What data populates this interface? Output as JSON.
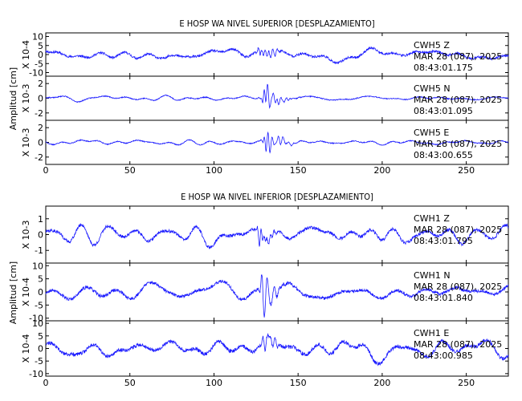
{
  "chart_data": [
    {
      "type": "line",
      "title": "E HOSP WA NIVEL SUPERIOR [DESPLAZAMIENTO]",
      "ylabel": "Amplitud [cm]",
      "xlim": [
        0,
        275
      ],
      "x_ticks": [
        "0",
        "50",
        "100",
        "150",
        "200",
        "250"
      ],
      "panels": [
        {
          "name": "CWH5 Z",
          "scale": "X 10-4",
          "ylim": [
            -12,
            12
          ],
          "y_ticks": [
            "10",
            "5",
            "0",
            "-5",
            "-10"
          ],
          "station": "CWH5",
          "component": "Z",
          "date": "MAR 28 (087), 2025",
          "time": "08:43:01.175",
          "profile": {
            "base": 3.5,
            "event_peak": 5,
            "event_center": 128,
            "seed": 11
          }
        },
        {
          "name": "CWH5 N",
          "scale": "X 10-3",
          "ylim": [
            -3,
            3
          ],
          "y_ticks": [
            "2",
            "0",
            "-2"
          ],
          "station": "CWH5",
          "component": "N",
          "date": "MAR 28 (087), 2025",
          "time": "08:43:01.095",
          "profile": {
            "base": 0.35,
            "event_peak": 2.3,
            "event_center": 130,
            "seed": 23
          }
        },
        {
          "name": "CWH5 E",
          "scale": "X 10-3",
          "ylim": [
            -3,
            3
          ],
          "y_ticks": [
            "2",
            "0",
            "-2"
          ],
          "station": "CWH5",
          "component": "E",
          "date": "MAR 28 (087), 2025",
          "time": "08:43:00.655",
          "profile": {
            "base": 0.35,
            "event_peak": 2.6,
            "event_center": 131,
            "seed": 37
          }
        }
      ]
    },
    {
      "type": "line",
      "title": "E HOSP WA NIVEL INFERIOR [DESPLAZAMIENTO]",
      "ylabel": "Amplitud [cm]",
      "xlim": [
        0,
        275
      ],
      "x_ticks": [
        "0",
        "50",
        "100",
        "150",
        "200",
        "250"
      ],
      "panels": [
        {
          "name": "CWH1 Z",
          "scale": "X 10-3",
          "ylim": [
            -1.8,
            1.8
          ],
          "y_ticks": [
            "1",
            "0",
            "-1"
          ],
          "station": "CWH1",
          "component": "Z",
          "date": "MAR 28 (087), 2025",
          "time": "08:43:01.795",
          "profile": {
            "base": 0.55,
            "event_peak": 0.6,
            "event_center": 128,
            "seed": 41
          }
        },
        {
          "name": "CWH1 N",
          "scale": "X 10-4",
          "ylim": [
            -11,
            11
          ],
          "y_ticks": [
            "10",
            "5",
            "0",
            "-5",
            "-10"
          ],
          "station": "CWH1",
          "component": "N",
          "date": "MAR 28 (087), 2025",
          "time": "08:43:01.840",
          "profile": {
            "base": 3.5,
            "event_peak": 8,
            "event_center": 129,
            "seed": 53
          }
        },
        {
          "name": "CWH1 E",
          "scale": "X 10-4",
          "ylim": [
            -11,
            11
          ],
          "y_ticks": [
            "10",
            "5",
            "0",
            "-5",
            "-10"
          ],
          "station": "CWH1",
          "component": "E",
          "date": "MAR 28 (087), 2025",
          "time": "08:43:00.985",
          "profile": {
            "base": 4,
            "event_peak": 4,
            "event_center": 130,
            "seed": 67
          }
        }
      ]
    }
  ]
}
